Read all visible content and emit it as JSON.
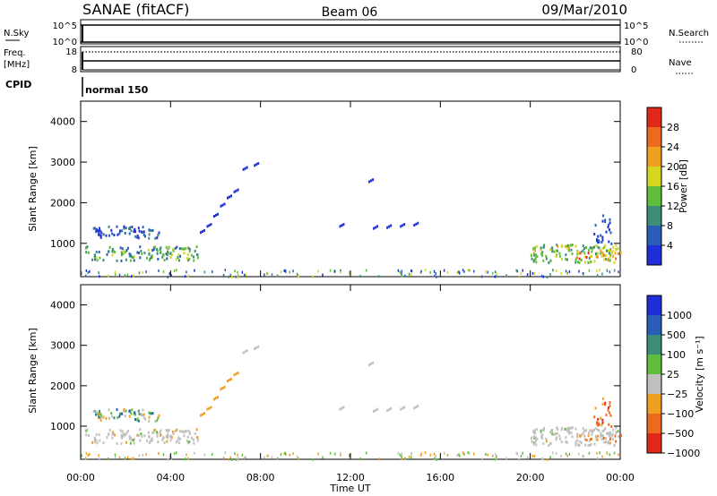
{
  "header": {
    "title": "SANAE (fitACF)",
    "beam": "Beam 06",
    "date": "09/Mar/2010"
  },
  "small_panels": {
    "nsky_label": "N.Sky",
    "nsky_ticks": [
      "10^5",
      "10^0"
    ],
    "nsearch_label": "N.Search",
    "freq_label": "Freq.",
    "freq_unit": "[MHz]",
    "freq_ticks": [
      "18",
      "8"
    ],
    "nave_label": "Nave",
    "nave_ticks": [
      "80",
      "0"
    ],
    "cpid_label": "CPID",
    "cpid_value": "normal 150"
  },
  "chart_data": [
    {
      "type": "heatmap",
      "panel": "power",
      "ylabel": "Slant Range [km]",
      "xlabel": "",
      "ylim": [
        180,
        4500
      ],
      "yticks": [
        "1000",
        "2000",
        "3000",
        "4000"
      ],
      "colorbar_label": "Power [dB]",
      "colorbar_ticks": [
        "4",
        "8",
        "12",
        "16",
        "20",
        "24",
        "28"
      ],
      "colorbar_colors": [
        "#1e2fd9",
        "#2a5db8",
        "#3a8e7a",
        "#5fbf3a",
        "#d6d61e",
        "#f0a020",
        "#ec6a1e",
        "#e02818"
      ],
      "regions": [
        {
          "t0": 0.2,
          "t1": 5.2,
          "r0": 600,
          "r1": 950,
          "level": 0.35
        },
        {
          "t0": 0.5,
          "t1": 3.5,
          "r0": 1150,
          "r1": 1450,
          "level": 0.05
        },
        {
          "t0": 20.0,
          "t1": 24.0,
          "r0": 550,
          "r1": 1000,
          "level": 0.45
        },
        {
          "t0": 22.0,
          "t1": 24.0,
          "r0": 650,
          "r1": 800,
          "level": 0.75
        }
      ]
    },
    {
      "type": "heatmap",
      "panel": "velocity",
      "ylabel": "Slant Range [km]",
      "xlabel": "Time UT",
      "ylim": [
        180,
        4500
      ],
      "yticks": [
        "1000",
        "2000",
        "3000",
        "4000"
      ],
      "xticks": [
        "00:00",
        "04:00",
        "08:00",
        "12:00",
        "16:00",
        "20:00",
        "00:00"
      ],
      "colorbar_label": "Velocity [m s⁻¹]",
      "colorbar_ticks": [
        "1000",
        "500",
        "100",
        "25",
        "−25",
        "−100",
        "−500",
        "−1000"
      ],
      "colorbar_colors": [
        "#1e2fd9",
        "#2a5db8",
        "#3a8e7a",
        "#5fbf3a",
        "#c0c0c0",
        "#f0a020",
        "#ec6a1e",
        "#e02818"
      ],
      "regions": [
        {
          "t0": 0.2,
          "t1": 5.2,
          "r0": 600,
          "r1": 950,
          "level": "ground"
        },
        {
          "t0": 0.5,
          "t1": 3.5,
          "r0": 1150,
          "r1": 1450,
          "level": "mixed"
        },
        {
          "t0": 20.0,
          "t1": 24.0,
          "r0": 550,
          "r1": 1000,
          "level": "ground"
        },
        {
          "t0": 23.0,
          "t1": 24.0,
          "r0": 650,
          "r1": 900,
          "level": "negative"
        }
      ]
    }
  ]
}
